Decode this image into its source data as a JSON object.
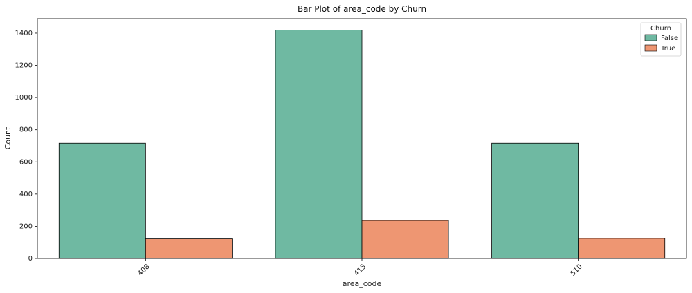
{
  "chart_data": {
    "type": "bar",
    "title": "Bar Plot of area_code by Churn",
    "xlabel": "area_code",
    "ylabel": "Count",
    "categories": [
      "408",
      "415",
      "510"
    ],
    "series": [
      {
        "name": "False",
        "values": [
          716,
          1419,
          716
        ],
        "color": "#6fb9a2"
      },
      {
        "name": "True",
        "values": [
          122,
          236,
          125
        ],
        "color": "#ee9672"
      }
    ],
    "ylim": [
      0,
      1490
    ],
    "yticks": [
      0,
      200,
      400,
      600,
      800,
      1000,
      1200,
      1400
    ],
    "grid": false,
    "legend": {
      "title": "Churn",
      "placement": "top-right"
    }
  }
}
